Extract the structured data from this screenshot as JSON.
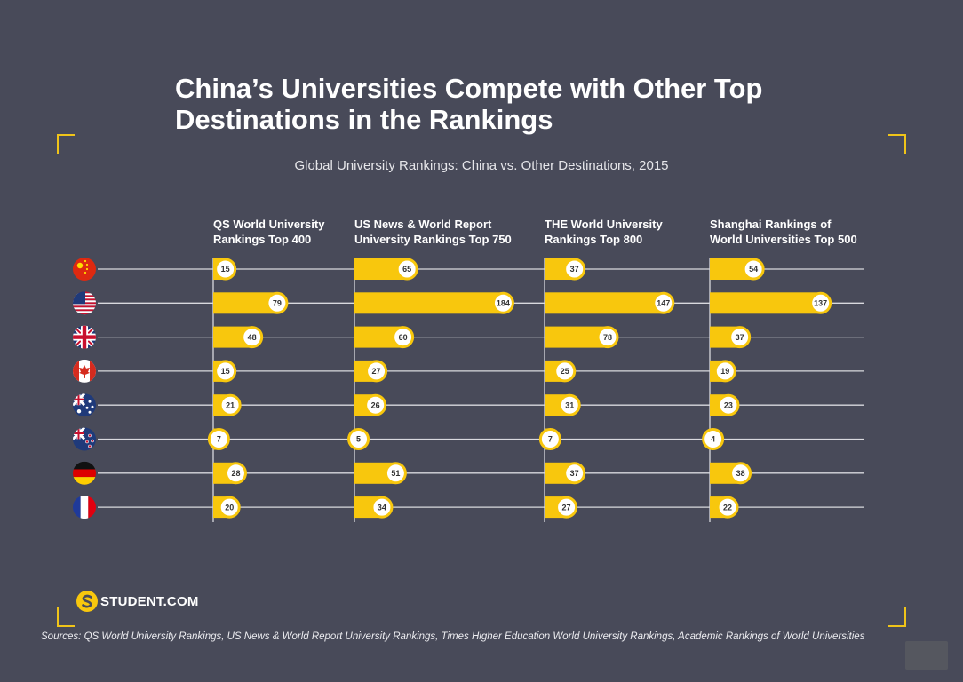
{
  "title": "China’s Universities Compete with Other Top Destinations in the Rankings",
  "subtitle": "Global University Rankings: China vs. Other Destinations, 2015",
  "logo_text": "STUDENT.COM",
  "sources": "Sources: QS World University Rankings, US News & World Report University Rankings, Times Higher Education World University Rankings, Academic Rankings of World Universities",
  "colors": {
    "background": "#484a59",
    "bar": "#f8c70d",
    "accent": "#f0c419",
    "line": "#d9d9de"
  },
  "chart_data": {
    "type": "bar",
    "title": "Global University Rankings: China vs. Other Destinations, 2015",
    "categories": [
      "China",
      "United States",
      "United Kingdom",
      "Canada",
      "Australia",
      "New Zealand",
      "Germany",
      "France"
    ],
    "category_icons": [
      "china-flag-icon",
      "usa-flag-icon",
      "uk-flag-icon",
      "canada-flag-icon",
      "australia-flag-icon",
      "new-zealand-flag-icon",
      "germany-flag-icon",
      "france-flag-icon"
    ],
    "series": [
      {
        "name": "QS World University Rankings Top 400",
        "lines": [
          "QS World University",
          "Rankings Top 400"
        ],
        "values": [
          15,
          79,
          48,
          15,
          21,
          7,
          28,
          20
        ]
      },
      {
        "name": "US News & World Report University Rankings Top 750",
        "lines": [
          "US News & World Report",
          "University Rankings Top 750"
        ],
        "values": [
          65,
          184,
          60,
          27,
          26,
          5,
          51,
          34
        ]
      },
      {
        "name": "THE World University Rankings Top 800",
        "lines": [
          "THE World University",
          "Rankings Top 800"
        ],
        "values": [
          37,
          147,
          78,
          25,
          31,
          7,
          37,
          27
        ]
      },
      {
        "name": "Shanghai Rankings of World Universities Top 500",
        "lines": [
          "Shanghai Rankings of",
          "World Universities Top 500"
        ],
        "values": [
          54,
          137,
          37,
          19,
          23,
          4,
          38,
          22
        ]
      }
    ]
  }
}
